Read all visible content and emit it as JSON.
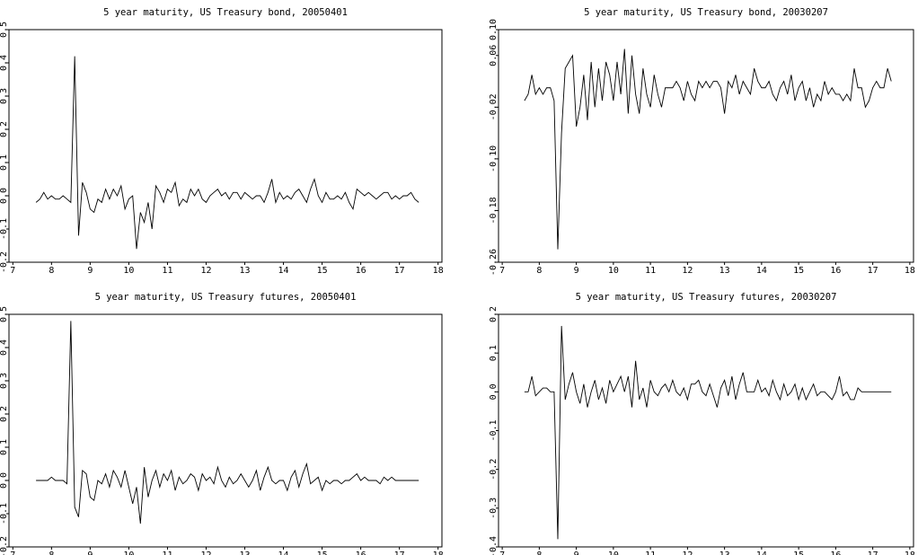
{
  "chart_data": [
    {
      "type": "line",
      "title": "5 year maturity, US Treasury bond, 20050401",
      "color": "#000000",
      "x": [
        7.6,
        7.7,
        7.8,
        7.9,
        8.0,
        8.1,
        8.2,
        8.3,
        8.4,
        8.5,
        8.6,
        8.7,
        8.8,
        8.9,
        9.0,
        9.1,
        9.2,
        9.3,
        9.4,
        9.5,
        9.6,
        9.7,
        9.8,
        9.9,
        10.0,
        10.1,
        10.2,
        10.3,
        10.4,
        10.5,
        10.6,
        10.7,
        10.8,
        10.9,
        11.0,
        11.1,
        11.2,
        11.3,
        11.4,
        11.5,
        11.6,
        11.7,
        11.8,
        11.9,
        12.0,
        12.1,
        12.2,
        12.3,
        12.4,
        12.5,
        12.6,
        12.7,
        12.8,
        12.9,
        13.0,
        13.1,
        13.2,
        13.3,
        13.4,
        13.5,
        13.6,
        13.7,
        13.8,
        13.9,
        14.0,
        14.1,
        14.2,
        14.3,
        14.4,
        14.5,
        14.6,
        14.7,
        14.8,
        14.9,
        15.0,
        15.1,
        15.2,
        15.3,
        15.4,
        15.5,
        15.6,
        15.7,
        15.8,
        15.9,
        16.0,
        16.1,
        16.2,
        16.3,
        16.4,
        16.5,
        16.6,
        16.7,
        16.8,
        16.9,
        17.0,
        17.1,
        17.2,
        17.3,
        17.4,
        17.5
      ],
      "values": [
        -0.02,
        -0.01,
        0.01,
        -0.01,
        0.0,
        -0.01,
        -0.01,
        0.0,
        -0.01,
        -0.02,
        0.42,
        -0.12,
        0.04,
        0.01,
        -0.04,
        -0.05,
        -0.01,
        -0.02,
        0.02,
        -0.01,
        0.02,
        0.0,
        0.03,
        -0.04,
        -0.01,
        0.0,
        -0.16,
        -0.05,
        -0.08,
        -0.02,
        -0.1,
        0.03,
        0.01,
        -0.02,
        0.02,
        0.01,
        0.04,
        -0.03,
        -0.01,
        -0.02,
        0.02,
        0.0,
        0.02,
        -0.01,
        -0.02,
        0.0,
        0.01,
        0.02,
        0.0,
        0.01,
        -0.01,
        0.01,
        0.01,
        -0.01,
        0.01,
        0.0,
        -0.01,
        0.0,
        0.0,
        -0.02,
        0.01,
        0.05,
        -0.02,
        0.01,
        -0.01,
        0.0,
        -0.01,
        0.01,
        0.02,
        0.0,
        -0.02,
        0.02,
        0.05,
        0.0,
        -0.02,
        0.01,
        -0.01,
        -0.01,
        0.0,
        -0.01,
        0.01,
        -0.02,
        -0.04,
        0.02,
        0.01,
        0.0,
        0.01,
        0.0,
        -0.01,
        0.0,
        0.01,
        0.01,
        -0.01,
        0.0,
        -0.01,
        0.0,
        0.0,
        0.01,
        -0.01,
        -0.02
      ],
      "xlim": [
        6.9,
        18.1
      ],
      "xticks": [
        7,
        8,
        9,
        10,
        11,
        12,
        13,
        14,
        15,
        16,
        17,
        18
      ],
      "ylim": [
        -0.2,
        0.5
      ],
      "yticks": [
        -0.2,
        -0.1,
        {
          "value": 0,
          "label": "0.0"
        },
        0.1,
        0.2,
        0.3,
        0.4,
        0.5
      ]
    },
    {
      "type": "line",
      "title": "5 year maturity, US Treasury bond, 20030207",
      "color": "#000000",
      "x": [
        7.6,
        7.7,
        7.8,
        7.9,
        8.0,
        8.1,
        8.2,
        8.3,
        8.4,
        8.5,
        8.6,
        8.7,
        8.8,
        8.9,
        9.0,
        9.1,
        9.2,
        9.3,
        9.4,
        9.5,
        9.6,
        9.7,
        9.8,
        9.9,
        10.0,
        10.1,
        10.2,
        10.3,
        10.4,
        10.5,
        10.6,
        10.7,
        10.8,
        10.9,
        11.0,
        11.1,
        11.2,
        11.3,
        11.4,
        11.5,
        11.6,
        11.7,
        11.8,
        11.9,
        12.0,
        12.1,
        12.2,
        12.3,
        12.4,
        12.5,
        12.6,
        12.7,
        12.8,
        12.9,
        13.0,
        13.1,
        13.2,
        13.3,
        13.4,
        13.5,
        13.6,
        13.7,
        13.8,
        13.9,
        14.0,
        14.1,
        14.2,
        14.3,
        14.4,
        14.5,
        14.6,
        14.7,
        14.8,
        14.9,
        15.0,
        15.1,
        15.2,
        15.3,
        15.4,
        15.5,
        15.6,
        15.7,
        15.8,
        15.9,
        16.0,
        16.1,
        16.2,
        16.3,
        16.4,
        16.5,
        16.6,
        16.7,
        16.8,
        16.9,
        17.0,
        17.1,
        17.2,
        17.3,
        17.4,
        17.5
      ],
      "values": [
        -0.01,
        0.0,
        0.03,
        0.0,
        0.01,
        0.0,
        0.01,
        0.01,
        -0.01,
        -0.24,
        -0.06,
        0.04,
        0.05,
        0.06,
        -0.05,
        -0.02,
        0.03,
        -0.04,
        0.05,
        -0.02,
        0.04,
        -0.01,
        0.05,
        0.03,
        -0.01,
        0.05,
        0.0,
        0.07,
        -0.03,
        0.06,
        0.0,
        -0.03,
        0.04,
        0.0,
        -0.02,
        0.03,
        0.0,
        -0.02,
        0.01,
        0.01,
        0.01,
        0.02,
        0.01,
        -0.01,
        0.02,
        0.0,
        -0.01,
        0.02,
        0.01,
        0.02,
        0.01,
        0.02,
        0.02,
        0.01,
        -0.03,
        0.02,
        0.01,
        0.03,
        0.0,
        0.02,
        0.01,
        0.0,
        0.04,
        0.02,
        0.01,
        0.01,
        0.02,
        0.0,
        -0.01,
        0.01,
        0.02,
        0.0,
        0.03,
        -0.01,
        0.01,
        0.02,
        -0.01,
        0.01,
        -0.02,
        0.0,
        -0.01,
        0.02,
        0.0,
        0.01,
        0.0,
        0.0,
        -0.01,
        0.0,
        -0.01,
        0.04,
        0.01,
        0.01,
        -0.02,
        -0.01,
        0.01,
        0.02,
        0.01,
        0.01,
        0.04,
        0.02
      ],
      "xlim": [
        6.9,
        18.1
      ],
      "xticks": [
        7,
        8,
        9,
        10,
        11,
        12,
        13,
        14,
        15,
        16,
        17,
        18
      ],
      "ylim": [
        -0.26,
        0.1
      ],
      "yticks": [
        -0.26,
        -0.18,
        {
          "value": -0.1,
          "label": "-0.10"
        },
        -0.02,
        0.06,
        {
          "value": 0.1,
          "label": "0.10"
        }
      ]
    },
    {
      "type": "line",
      "title": "5 year maturity, US Treasury futures, 20050401",
      "color": "#000000",
      "x": [
        7.6,
        7.7,
        7.8,
        7.9,
        8.0,
        8.1,
        8.2,
        8.3,
        8.4,
        8.5,
        8.6,
        8.7,
        8.8,
        8.9,
        9.0,
        9.1,
        9.2,
        9.3,
        9.4,
        9.5,
        9.6,
        9.7,
        9.8,
        9.9,
        10.0,
        10.1,
        10.2,
        10.3,
        10.4,
        10.5,
        10.6,
        10.7,
        10.8,
        10.9,
        11.0,
        11.1,
        11.2,
        11.3,
        11.4,
        11.5,
        11.6,
        11.7,
        11.8,
        11.9,
        12.0,
        12.1,
        12.2,
        12.3,
        12.4,
        12.5,
        12.6,
        12.7,
        12.8,
        12.9,
        13.0,
        13.1,
        13.2,
        13.3,
        13.4,
        13.5,
        13.6,
        13.7,
        13.8,
        13.9,
        14.0,
        14.1,
        14.2,
        14.3,
        14.4,
        14.5,
        14.6,
        14.7,
        14.8,
        14.9,
        15.0,
        15.1,
        15.2,
        15.3,
        15.4,
        15.5,
        15.6,
        15.7,
        15.8,
        15.9,
        16.0,
        16.1,
        16.2,
        16.3,
        16.4,
        16.5,
        16.6,
        16.7,
        16.8,
        16.9,
        17.0,
        17.1,
        17.2,
        17.3,
        17.4,
        17.5
      ],
      "values": [
        0.0,
        0.0,
        0.0,
        0.0,
        0.01,
        0.0,
        0.0,
        0.0,
        -0.01,
        0.48,
        -0.08,
        -0.11,
        0.03,
        0.02,
        -0.05,
        -0.06,
        0.0,
        -0.01,
        0.02,
        -0.02,
        0.03,
        0.01,
        -0.02,
        0.03,
        -0.02,
        -0.07,
        -0.02,
        -0.13,
        0.04,
        -0.05,
        0.0,
        0.03,
        -0.02,
        0.02,
        0.0,
        0.03,
        -0.03,
        0.01,
        -0.01,
        0.0,
        0.02,
        0.01,
        -0.03,
        0.02,
        0.0,
        0.01,
        -0.01,
        0.04,
        0.0,
        -0.02,
        0.01,
        -0.01,
        0.0,
        0.02,
        0.0,
        -0.02,
        0.0,
        0.03,
        -0.03,
        0.01,
        0.04,
        0.0,
        -0.01,
        0.0,
        0.0,
        -0.03,
        0.01,
        0.03,
        -0.02,
        0.02,
        0.05,
        -0.01,
        0.0,
        0.01,
        -0.03,
        0.0,
        -0.01,
        0.0,
        0.0,
        -0.01,
        0.0,
        0.0,
        0.01,
        0.02,
        0.0,
        0.01,
        0.0,
        0.0,
        0.0,
        -0.01,
        0.01,
        0.0,
        0.01,
        0.0,
        0.0,
        0.0,
        0.0,
        0.0,
        0.0,
        0.0
      ],
      "xlim": [
        6.9,
        18.1
      ],
      "xticks": [
        7,
        8,
        9,
        10,
        11,
        12,
        13,
        14,
        15,
        16,
        17,
        18
      ],
      "ylim": [
        -0.2,
        0.5
      ],
      "yticks": [
        -0.2,
        -0.1,
        {
          "value": 0,
          "label": "0.0"
        },
        0.1,
        0.2,
        0.3,
        0.4,
        0.5
      ]
    },
    {
      "type": "line",
      "title": "5 year maturity, US Treasury futures, 20030207",
      "color": "#000000",
      "x": [
        7.6,
        7.7,
        7.8,
        7.9,
        8.0,
        8.1,
        8.2,
        8.3,
        8.4,
        8.5,
        8.6,
        8.7,
        8.8,
        8.9,
        9.0,
        9.1,
        9.2,
        9.3,
        9.4,
        9.5,
        9.6,
        9.7,
        9.8,
        9.9,
        10.0,
        10.1,
        10.2,
        10.3,
        10.4,
        10.5,
        10.6,
        10.7,
        10.8,
        10.9,
        11.0,
        11.1,
        11.2,
        11.3,
        11.4,
        11.5,
        11.6,
        11.7,
        11.8,
        11.9,
        12.0,
        12.1,
        12.2,
        12.3,
        12.4,
        12.5,
        12.6,
        12.7,
        12.8,
        12.9,
        13.0,
        13.1,
        13.2,
        13.3,
        13.4,
        13.5,
        13.6,
        13.7,
        13.8,
        13.9,
        14.0,
        14.1,
        14.2,
        14.3,
        14.4,
        14.5,
        14.6,
        14.7,
        14.8,
        14.9,
        15.0,
        15.1,
        15.2,
        15.3,
        15.4,
        15.5,
        15.6,
        15.7,
        15.8,
        15.9,
        16.0,
        16.1,
        16.2,
        16.3,
        16.4,
        16.5,
        16.6,
        16.7,
        16.8,
        16.9,
        17.0,
        17.1,
        17.2,
        17.3,
        17.4,
        17.5
      ],
      "values": [
        0.0,
        0.0,
        0.04,
        -0.01,
        0.0,
        0.01,
        0.01,
        0.0,
        0.0,
        -0.38,
        0.17,
        -0.02,
        0.02,
        0.05,
        0.0,
        -0.03,
        0.02,
        -0.04,
        0.0,
        0.03,
        -0.02,
        0.01,
        -0.03,
        0.03,
        0.0,
        0.02,
        0.04,
        0.0,
        0.04,
        -0.04,
        0.08,
        -0.02,
        0.01,
        -0.04,
        0.03,
        0.0,
        -0.01,
        0.01,
        0.02,
        0.0,
        0.03,
        0.0,
        -0.01,
        0.01,
        -0.02,
        0.02,
        0.02,
        0.03,
        0.0,
        -0.01,
        0.02,
        -0.01,
        -0.04,
        0.01,
        0.03,
        -0.01,
        0.04,
        -0.02,
        0.02,
        0.05,
        0.0,
        0.0,
        0.0,
        0.03,
        0.0,
        0.01,
        -0.01,
        0.03,
        0.0,
        -0.02,
        0.02,
        -0.01,
        0.0,
        0.02,
        -0.02,
        0.01,
        -0.02,
        0.0,
        0.02,
        -0.01,
        0.0,
        0.0,
        -0.01,
        -0.02,
        0.0,
        0.04,
        -0.01,
        0.0,
        -0.02,
        -0.02,
        0.01,
        0.0,
        0.0,
        0.0,
        0.0,
        0.0,
        0.0,
        0.0,
        0.0,
        0.0
      ],
      "xlim": [
        6.9,
        18.1
      ],
      "xticks": [
        7,
        8,
        9,
        10,
        11,
        12,
        13,
        14,
        15,
        16,
        17,
        18
      ],
      "ylim": [
        -0.4,
        0.2
      ],
      "yticks": [
        -0.4,
        -0.3,
        -0.2,
        -0.1,
        {
          "value": 0,
          "label": "0.0"
        },
        0.1,
        0.2
      ]
    }
  ]
}
